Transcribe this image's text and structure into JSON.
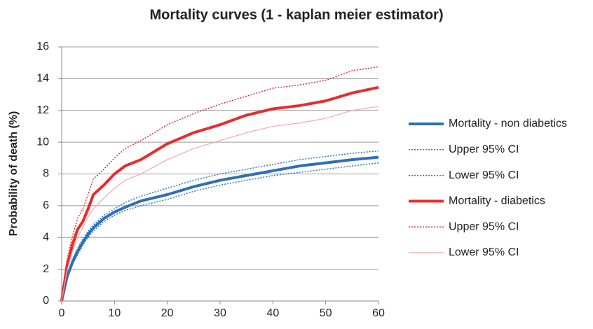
{
  "chart_data": {
    "type": "line",
    "title": "Mortality curves (1 - kaplan meier estimator)",
    "y_label": "Probability of death (%)",
    "x": [
      0,
      1,
      2,
      3,
      4,
      5,
      6,
      8,
      10,
      12,
      15,
      20,
      25,
      30,
      35,
      40,
      45,
      50,
      55,
      60
    ],
    "xlim": [
      0,
      60
    ],
    "xticks": [
      0,
      10,
      20,
      30,
      40,
      50,
      60
    ],
    "ylim": [
      0,
      16
    ],
    "yticks": [
      0,
      2,
      4,
      6,
      8,
      10,
      12,
      14,
      16
    ],
    "grid": true,
    "legend": "right",
    "series": [
      {
        "name": "Mortality - non diabetics",
        "color": "#2e6fb5",
        "linestyle": "solid",
        "width": 4,
        "values": [
          0,
          1.5,
          2.4,
          3.1,
          3.7,
          4.2,
          4.6,
          5.2,
          5.6,
          5.9,
          6.3,
          6.7,
          7.2,
          7.6,
          7.9,
          8.2,
          8.5,
          8.7,
          8.9,
          9.05
        ]
      },
      {
        "name": "Upper 95% CI",
        "color": "#2e75c6",
        "linestyle": "dotted",
        "width": 1.5,
        "values": [
          0,
          1.6,
          2.6,
          3.3,
          3.9,
          4.4,
          4.8,
          5.4,
          5.8,
          6.2,
          6.6,
          7.1,
          7.6,
          8.0,
          8.3,
          8.6,
          8.9,
          9.1,
          9.3,
          9.45
        ]
      },
      {
        "name": "Lower 95% CI",
        "color": "#2e75c6",
        "linestyle": "dotted",
        "width": 1.5,
        "values": [
          0,
          1.4,
          2.3,
          2.9,
          3.5,
          4.0,
          4.4,
          5.0,
          5.4,
          5.7,
          6.0,
          6.4,
          6.9,
          7.3,
          7.6,
          7.9,
          8.1,
          8.3,
          8.5,
          8.7
        ]
      },
      {
        "name": "Mortality - diabetics",
        "color": "#e82c2c",
        "linestyle": "solid",
        "width": 4,
        "values": [
          0,
          2.2,
          3.5,
          4.5,
          5.0,
          5.8,
          6.7,
          7.3,
          8.0,
          8.5,
          8.9,
          9.9,
          10.6,
          11.1,
          11.7,
          12.1,
          12.3,
          12.6,
          13.1,
          13.45
        ]
      },
      {
        "name": "Upper 95% CI",
        "color": "#e82c2c",
        "linestyle": "dotted",
        "width": 1.5,
        "values": [
          0,
          2.6,
          4.0,
          5.2,
          5.8,
          6.7,
          7.7,
          8.3,
          9.0,
          9.6,
          10.1,
          11.1,
          11.8,
          12.4,
          12.9,
          13.4,
          13.6,
          13.9,
          14.5,
          14.75
        ]
      },
      {
        "name": "Lower 95% CI",
        "color": "#f4a8a8",
        "linestyle": "solid",
        "width": 1.2,
        "values": [
          0,
          1.9,
          3.1,
          4.0,
          4.6,
          5.3,
          5.8,
          6.5,
          7.1,
          7.6,
          8.0,
          8.9,
          9.6,
          10.1,
          10.6,
          11.0,
          11.2,
          11.5,
          12.0,
          12.25
        ]
      }
    ]
  }
}
